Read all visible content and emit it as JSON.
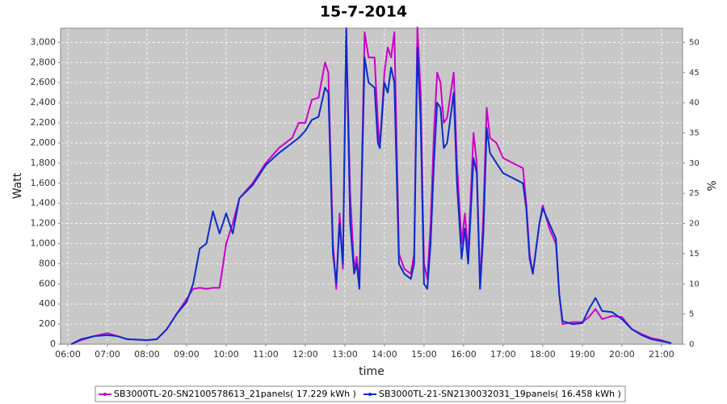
{
  "chart_data": {
    "type": "line",
    "title": "15-7-2014",
    "x_label": "time",
    "y_label": "Watt",
    "y2_label": "%",
    "x": [
      "06:05",
      "06:20",
      "06:40",
      "07:00",
      "07:15",
      "07:30",
      "08:00",
      "08:15",
      "08:30",
      "08:45",
      "09:00",
      "09:10",
      "09:20",
      "09:30",
      "09:40",
      "09:50",
      "10:00",
      "10:10",
      "10:20",
      "10:40",
      "11:00",
      "11:20",
      "11:40",
      "11:50",
      "12:00",
      "12:10",
      "12:20",
      "12:30",
      "12:35",
      "12:42",
      "12:47",
      "12:52",
      "12:57",
      "13:02",
      "13:08",
      "13:14",
      "13:18",
      "13:22",
      "13:30",
      "13:36",
      "13:45",
      "13:50",
      "13:53",
      "14:00",
      "14:05",
      "14:10",
      "14:15",
      "14:22",
      "14:30",
      "14:40",
      "14:45",
      "14:50",
      "14:55",
      "15:00",
      "15:05",
      "15:10",
      "15:15",
      "15:20",
      "15:25",
      "15:30",
      "15:35",
      "15:45",
      "15:50",
      "15:57",
      "16:02",
      "16:07",
      "16:15",
      "16:20",
      "16:25",
      "16:30",
      "16:35",
      "16:40",
      "16:50",
      "17:00",
      "17:15",
      "17:30",
      "17:35",
      "17:40",
      "17:45",
      "17:55",
      "18:00",
      "18:10",
      "18:20",
      "18:25",
      "18:30",
      "18:45",
      "19:00",
      "19:10",
      "19:20",
      "19:30",
      "19:45",
      "20:00",
      "20:15",
      "20:30",
      "20:45",
      "21:00",
      "21:15"
    ],
    "series": [
      {
        "name": "SB3000TL-20-SN2100578613_21panels( 17.229 kWh )",
        "color": "#cc00cc",
        "values": [
          0,
          40,
          80,
          110,
          80,
          50,
          40,
          50,
          150,
          300,
          450,
          550,
          560,
          550,
          560,
          560,
          1000,
          1200,
          1450,
          1600,
          1800,
          1950,
          2050,
          2200,
          2200,
          2430,
          2450,
          2800,
          2700,
          1000,
          550,
          1300,
          750,
          3140,
          1500,
          750,
          870,
          600,
          3100,
          2850,
          2850,
          2200,
          1950,
          2700,
          2950,
          2850,
          3100,
          900,
          750,
          700,
          900,
          3150,
          2500,
          800,
          650,
          1200,
          2100,
          2700,
          2600,
          2200,
          2250,
          2700,
          1800,
          1000,
          1300,
          900,
          2100,
          1800,
          550,
          1300,
          2350,
          2050,
          2000,
          1850,
          1800,
          1750,
          1400,
          900,
          700,
          1200,
          1380,
          1150,
          1000,
          500,
          200,
          220,
          220,
          270,
          350,
          250,
          280,
          270,
          150,
          100,
          60,
          40,
          10
        ]
      },
      {
        "name": "SB3000TL-21-SN2130032031_19panels( 16.458 kWh )",
        "color": "#0a2ccc",
        "values": [
          0,
          50,
          80,
          90,
          80,
          50,
          40,
          50,
          150,
          300,
          420,
          600,
          950,
          1000,
          1320,
          1100,
          1300,
          1100,
          1450,
          1580,
          1780,
          1900,
          2000,
          2050,
          2120,
          2230,
          2260,
          2550,
          2500,
          900,
          600,
          1200,
          800,
          3140,
          1200,
          700,
          800,
          550,
          2850,
          2600,
          2550,
          2000,
          1950,
          2600,
          2500,
          2750,
          2600,
          800,
          700,
          650,
          800,
          2950,
          2200,
          600,
          550,
          1000,
          1800,
          2400,
          2350,
          1950,
          2000,
          2500,
          1600,
          850,
          1150,
          800,
          1850,
          1700,
          550,
          1100,
          2150,
          1900,
          1800,
          1700,
          1650,
          1600,
          1350,
          850,
          700,
          1200,
          1350,
          1200,
          1050,
          500,
          230,
          200,
          210,
          350,
          460,
          330,
          320,
          250,
          150,
          90,
          50,
          30,
          10
        ]
      }
    ],
    "xlim": [
      "05:49",
      "21:32"
    ],
    "xticks": [
      "06:00",
      "07:00",
      "08:00",
      "09:00",
      "10:00",
      "11:00",
      "12:00",
      "13:00",
      "14:00",
      "15:00",
      "16:00",
      "17:00",
      "18:00",
      "19:00",
      "20:00",
      "21:00"
    ],
    "ylim": [
      0,
      3140
    ],
    "yticks": [
      0,
      200,
      400,
      600,
      800,
      {
        "value": 1000,
        "label": "1,000"
      },
      {
        "value": 1200,
        "label": "1,200"
      },
      {
        "value": 1400,
        "label": "1,400"
      },
      {
        "value": 1600,
        "label": "1,600"
      },
      {
        "value": 1800,
        "label": "1,800"
      },
      {
        "value": 2000,
        "label": "2,000"
      },
      {
        "value": 2200,
        "label": "2,200"
      },
      {
        "value": 2400,
        "label": "2,400"
      },
      {
        "value": 2600,
        "label": "2,600"
      },
      {
        "value": 2800,
        "label": "2,800"
      },
      {
        "value": 3000,
        "label": "3,000"
      }
    ],
    "y2lim": [
      0,
      52.33
    ],
    "y2ticks": [
      0,
      5,
      10,
      15,
      20,
      25,
      30,
      35,
      40,
      45,
      50
    ],
    "grid": true
  }
}
